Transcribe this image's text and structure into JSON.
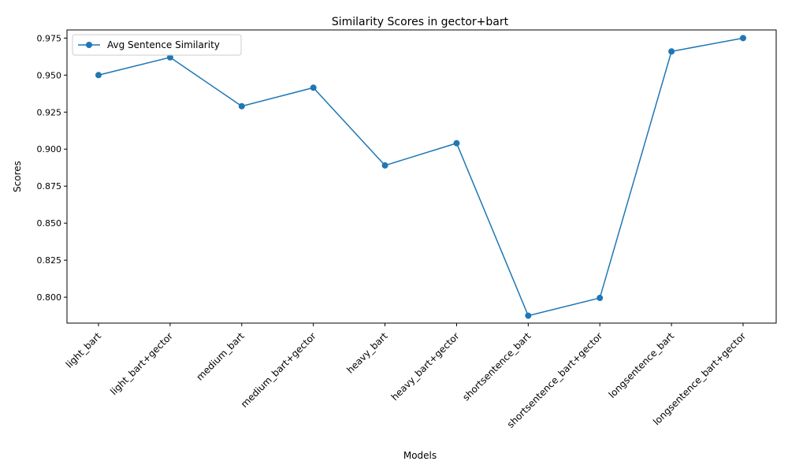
{
  "chart_data": {
    "type": "line",
    "title": "Similarity Scores in gector+bart",
    "xlabel": "Models",
    "ylabel": "Scores",
    "categories": [
      "light_bart",
      "light_bart+gector",
      "medium_bart",
      "medium_bart+gector",
      "heavy_bart",
      "heavy_bart+gector",
      "shortsentence_bart",
      "shortsentence_bart+gector",
      "longsentence_bart",
      "longsentence_bart+gector"
    ],
    "series": [
      {
        "name": "Avg Sentence Similarity",
        "color": "#1f77b4",
        "marker": "circle",
        "values": [
          0.95,
          0.962,
          0.929,
          0.9415,
          0.889,
          0.904,
          0.7875,
          0.7995,
          0.966,
          0.975
        ]
      }
    ],
    "ylim": [
      0.7825,
      0.9805
    ],
    "yticks": [
      "0.800",
      "0.825",
      "0.850",
      "0.875",
      "0.900",
      "0.925",
      "0.950",
      "0.975"
    ],
    "legend_position": "top-left",
    "grid": false
  }
}
